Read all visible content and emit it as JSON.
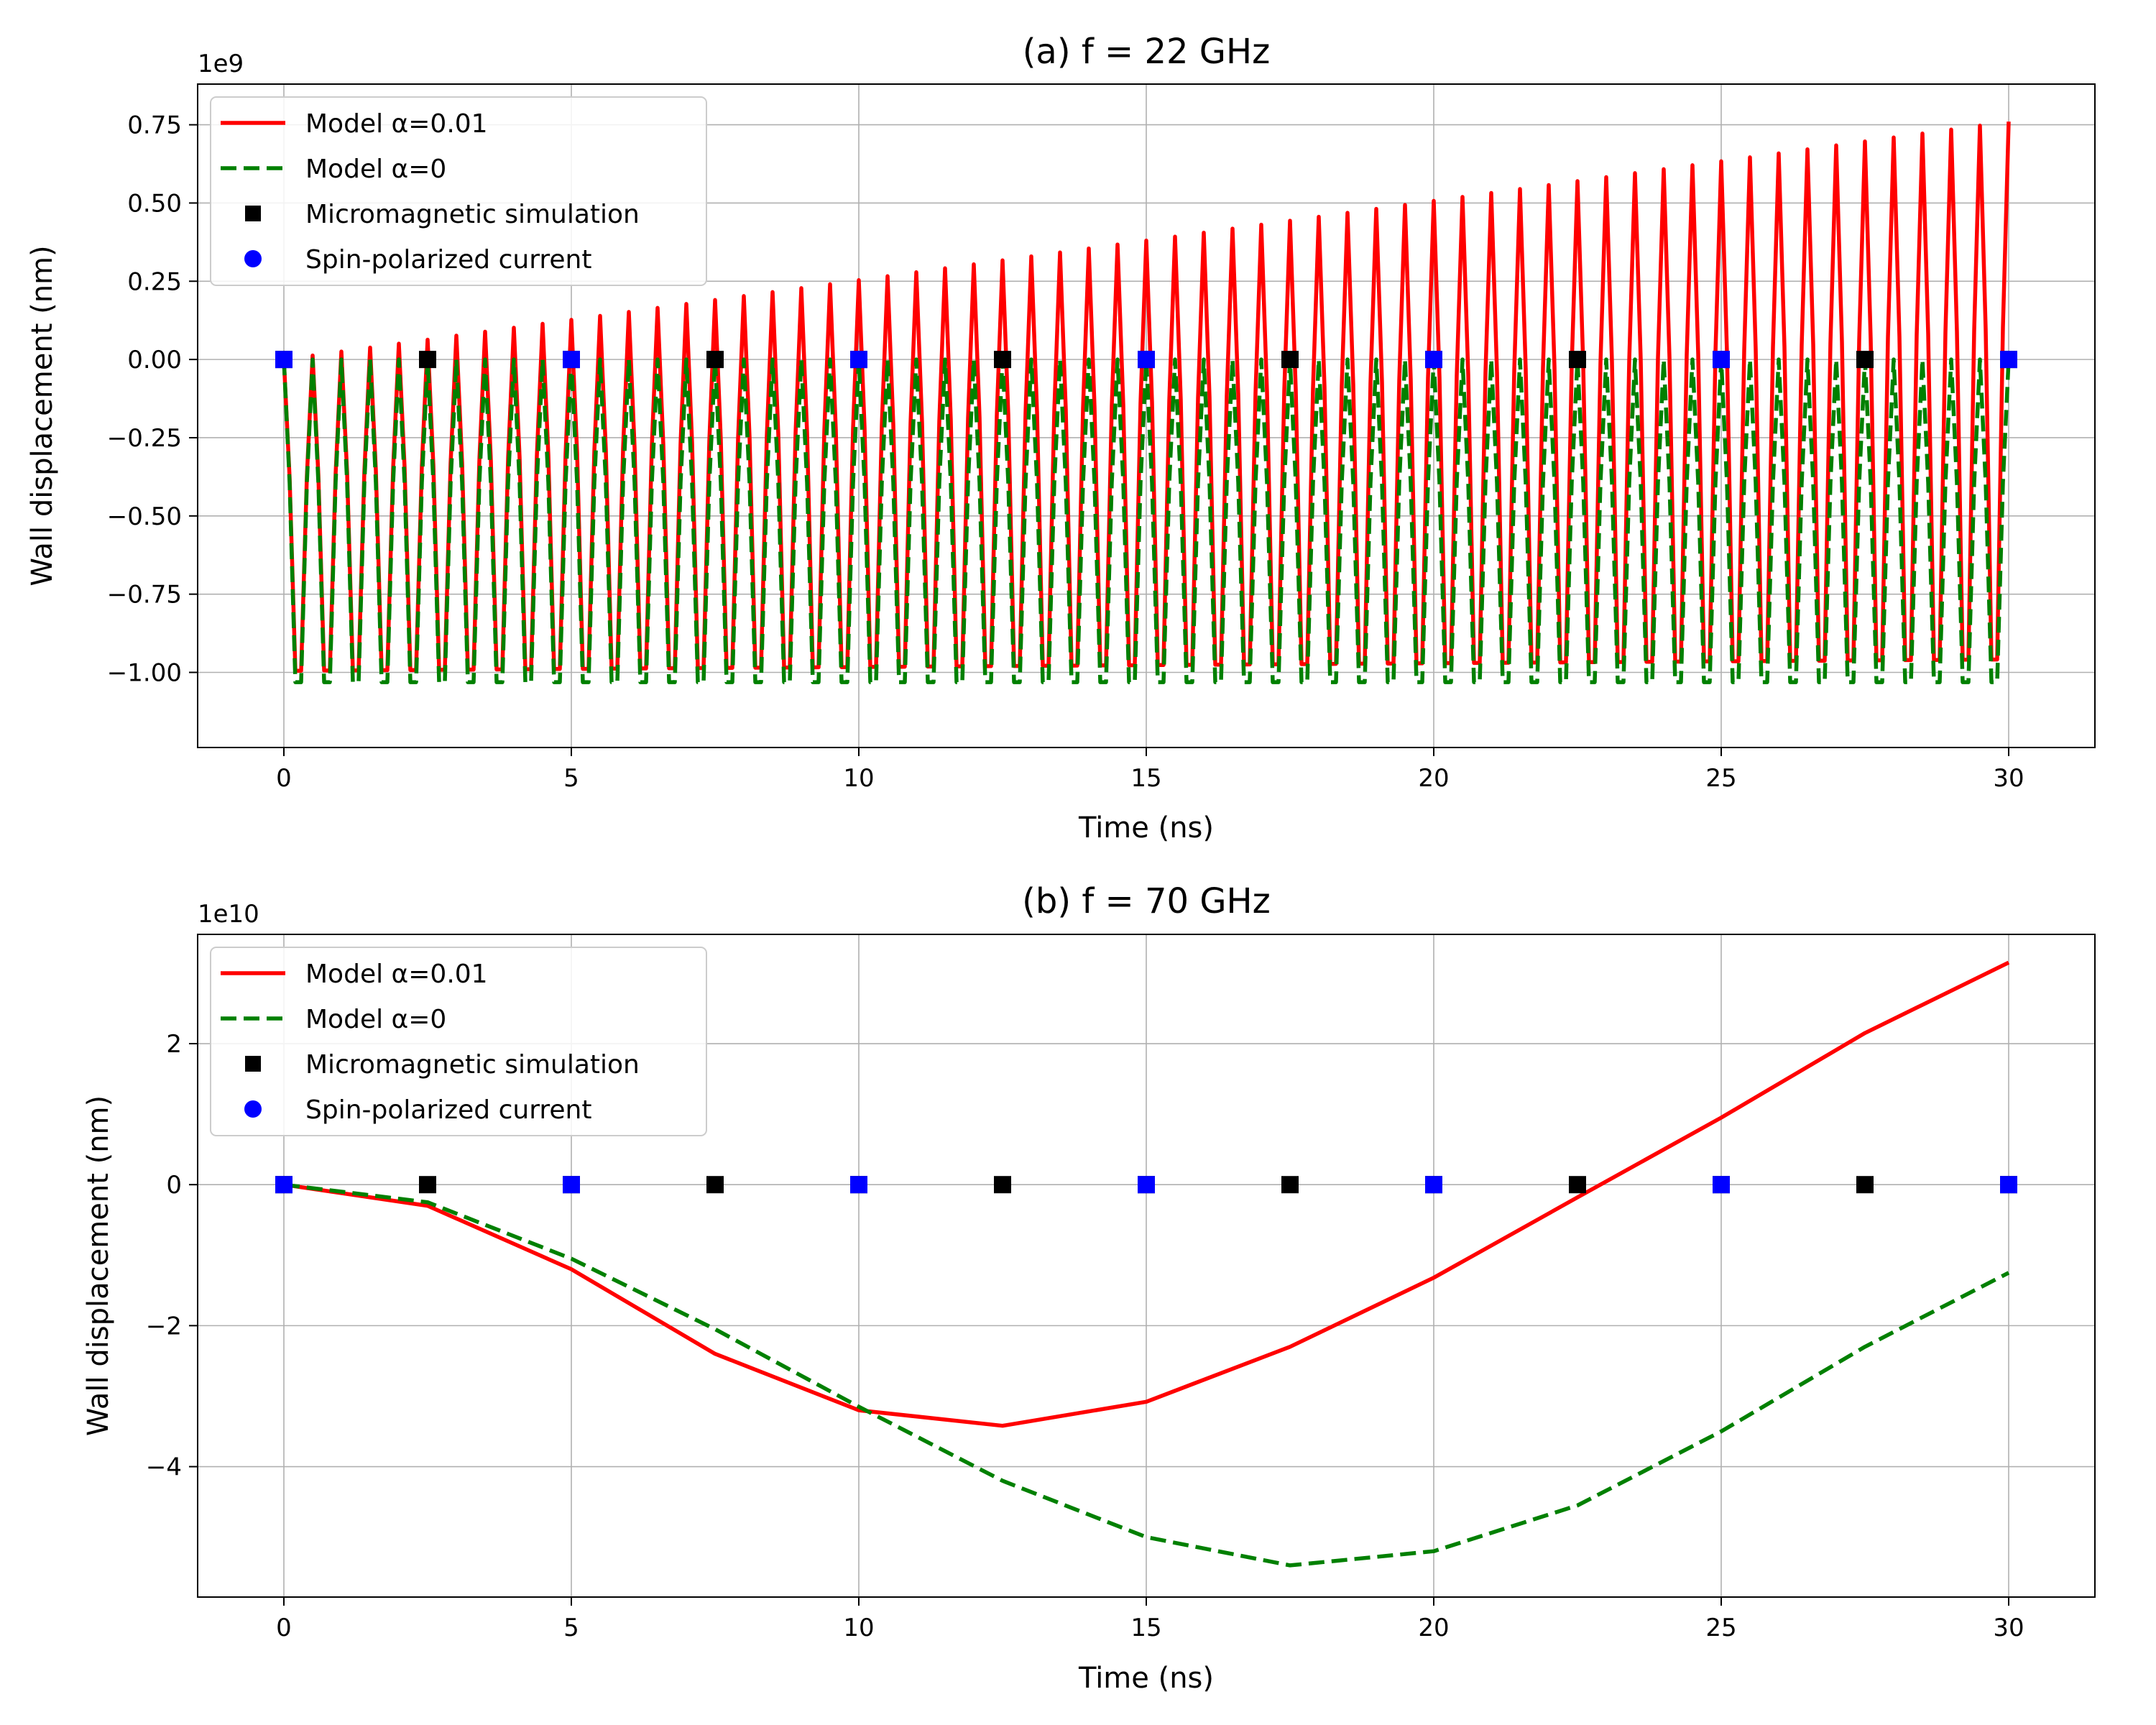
{
  "chart_data": [
    {
      "type": "line",
      "title": "(a) f = 22 GHz",
      "xlabel": "Time (ns)",
      "ylabel": "Wall displacement (nm)",
      "y_offset_text": "1e9",
      "y_multiplier": 1000000000,
      "xlim": [
        -1.5,
        31.5
      ],
      "ylim": [
        -1.24,
        0.88
      ],
      "xticks": [
        0,
        5,
        10,
        15,
        20,
        25,
        30
      ],
      "yticks": [
        -1.0,
        -0.75,
        -0.5,
        -0.25,
        0.0,
        0.25,
        0.5,
        0.75
      ],
      "ytick_labels": [
        "−1.00",
        "−0.75",
        "−0.50",
        "−0.25",
        "0.00",
        "0.25",
        "0.50",
        "0.75"
      ],
      "grid": true,
      "legend_position": "upper-left",
      "series": [
        {
          "name": "Model α=0.01",
          "style": "solid",
          "color": "#ff0000",
          "kind": "oscillation",
          "frequency_ghz": 22,
          "sample_step_ns": 0.1,
          "x_range": [
            0,
            30
          ],
          "center_start": -0.55,
          "center_end": -0.19,
          "amplitude_start": 0.55,
          "amplitude_end": 0.95
        },
        {
          "name": "Model α=0",
          "style": "dashed",
          "color": "#008000",
          "kind": "oscillation",
          "frequency_ghz": 22,
          "sample_step_ns": 0.1,
          "x_range": [
            0,
            30
          ],
          "center_start": -0.57,
          "center_end": -0.57,
          "amplitude_start": 0.57,
          "amplitude_end": 0.57
        },
        {
          "name": "Micromagnetic simulation",
          "style": "marker-square",
          "color": "#000000",
          "x": [
            0,
            2.5,
            5,
            7.5,
            10,
            12.5,
            15,
            17.5,
            20,
            22.5,
            25,
            27.5,
            30
          ],
          "y": [
            0,
            0,
            0,
            0,
            0,
            0,
            0,
            0,
            0,
            0,
            0,
            0,
            0
          ]
        },
        {
          "name": "Spin-polarized current",
          "style": "marker-square-blue",
          "color": "#0000ff",
          "x": [
            0,
            5,
            10,
            15,
            20,
            25,
            30
          ],
          "y": [
            0,
            0,
            0,
            0,
            0,
            0,
            0
          ]
        }
      ]
    },
    {
      "type": "line",
      "title": "(b) f = 70 GHz",
      "xlabel": "Time (ns)",
      "ylabel": "Wall displacement (nm)",
      "y_offset_text": "1e10",
      "y_multiplier": 10000000000,
      "xlim": [
        -1.5,
        31.5
      ],
      "ylim": [
        -5.85,
        3.55
      ],
      "xticks": [
        0,
        5,
        10,
        15,
        20,
        25,
        30
      ],
      "yticks": [
        -4,
        -2,
        0,
        2
      ],
      "ytick_labels": [
        "−4",
        "−2",
        "0",
        "2"
      ],
      "grid": true,
      "legend_position": "upper-left",
      "series": [
        {
          "name": "Model α=0.01",
          "style": "solid",
          "color": "#ff0000",
          "x": [
            0,
            2.5,
            5,
            7.5,
            10,
            12.5,
            15,
            17.5,
            20,
            22.5,
            25,
            27.5,
            30
          ],
          "y": [
            0,
            -0.3,
            -1.2,
            -2.4,
            -3.2,
            -3.42,
            -3.08,
            -2.3,
            -1.32,
            -0.18,
            0.95,
            2.15,
            3.15
          ]
        },
        {
          "name": "Model α=0",
          "style": "dashed",
          "color": "#008000",
          "x": [
            0,
            2.5,
            5,
            7.5,
            10,
            12.5,
            15,
            17.5,
            20,
            22.5,
            25,
            27.5,
            30
          ],
          "y": [
            0,
            -0.25,
            -1.05,
            -2.05,
            -3.15,
            -4.2,
            -5.0,
            -5.4,
            -5.2,
            -4.55,
            -3.5,
            -2.3,
            -1.25
          ]
        },
        {
          "name": "Micromagnetic simulation",
          "style": "marker-square",
          "color": "#000000",
          "x": [
            0,
            2.5,
            5,
            7.5,
            10,
            12.5,
            15,
            17.5,
            20,
            22.5,
            25,
            27.5,
            30
          ],
          "y": [
            0,
            0,
            0,
            0,
            0,
            0,
            0,
            0,
            0,
            0,
            0,
            0,
            0
          ]
        },
        {
          "name": "Spin-polarized current",
          "style": "marker-square-blue",
          "color": "#0000ff",
          "x": [
            0,
            5,
            10,
            15,
            20,
            25,
            30
          ],
          "y": [
            0,
            0,
            0,
            0,
            0,
            0,
            0
          ]
        }
      ]
    }
  ]
}
